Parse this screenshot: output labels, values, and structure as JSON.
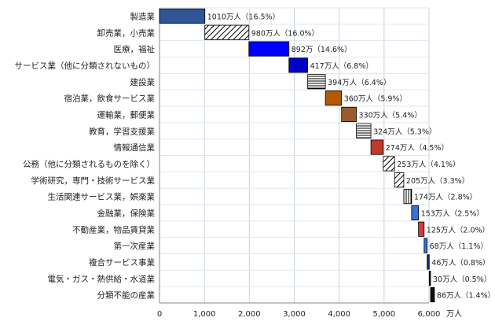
{
  "chart_data": {
    "type": "bar",
    "subtype": "waterfall-horizontal",
    "x_unit_label": "万人",
    "xlim": [
      0,
      6000
    ],
    "xticks": [
      "0",
      "1,000",
      "2,000",
      "3,000",
      "4,000",
      "5,000",
      "6,000"
    ],
    "grid": true,
    "legend": "none",
    "categories": [
      "製造業",
      "卸売業，小売業",
      "医療，福祉",
      "サービス業（他に分類されないもの）",
      "建設業",
      "宿泊業，飲食サービス業",
      "運輸業，郵便業",
      "教育，学習支援業",
      "情報通信業",
      "公務（他に分類されるものを除く）",
      "学術研究，専門・技術サービス業",
      "生活関連サービス業，娯楽業",
      "金融業，保険業",
      "不動産業，物品賃貸業",
      "第一次産業",
      "複合サービス事業",
      "電気・ガス・熱供給・水道業",
      "分類不能の産業"
    ],
    "values": [
      1010,
      980,
      892,
      417,
      394,
      360,
      330,
      324,
      274,
      253,
      205,
      174,
      153,
      125,
      68,
      46,
      30,
      86
    ],
    "labels": [
      "1010万人（16.5%）",
      "980万人（16.0%）",
      "892万（14.6%）",
      "417万人（6.8%）",
      "394万人（6.4%）",
      "360万人（5.9%）",
      "330万人（5.4%）",
      "324万人（5.3%）",
      "274万人（4.5%）",
      "253万人（4.1%）",
      "205万人（3.3%）",
      "174万人（2.8%）",
      "153万人（2.5%）",
      "125万人（2.0%）",
      "68万人（1.1%）",
      "46万人（0.8%）",
      "30万人（0.5%）",
      "86万人（1.4%）"
    ],
    "colors": [
      "#2f5597",
      "hatch-diag",
      "#0000ff",
      "#0000c8",
      "hatch-horiz",
      "#b35a00",
      "#9b5a2a",
      "hatch-horiz",
      "#c0392b",
      "hatch-diag",
      "hatch-diag",
      "hatch-vert",
      "#3a6fd8",
      "#d63a3a",
      "#3a6fd8",
      "#1a2f7a",
      "#222222",
      "#111111"
    ]
  }
}
